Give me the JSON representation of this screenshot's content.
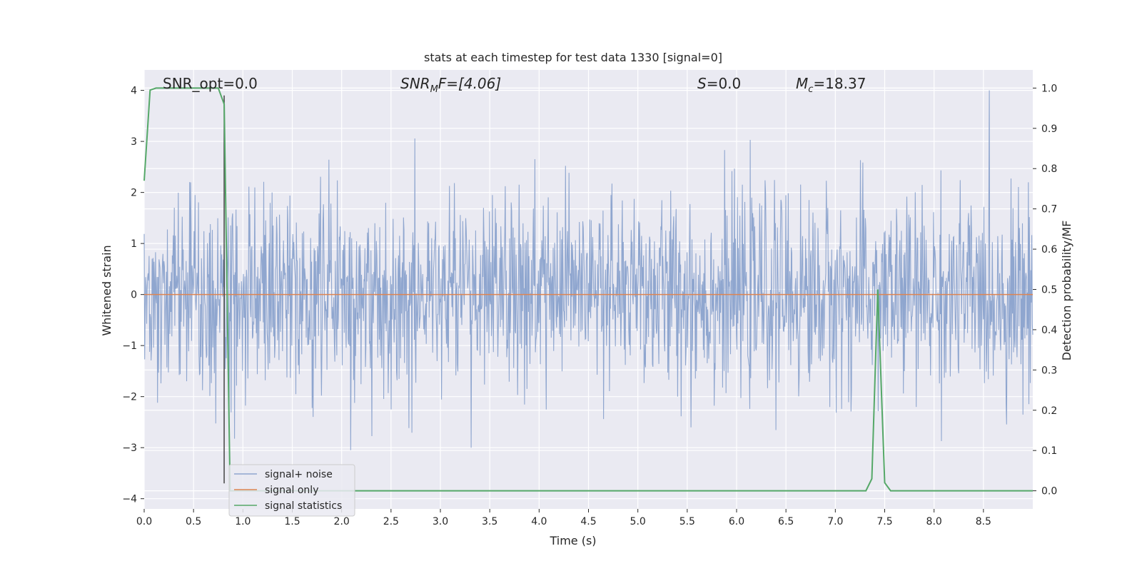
{
  "chart_data": {
    "type": "line",
    "title": "stats at each timestep for test data 1330 [signal=0]",
    "xlabel": "Time (s)",
    "ylabel": "Whitened strain",
    "ylabel_right": "Detection probability/MF",
    "xlim": [
      0.0,
      9.0
    ],
    "ylim": [
      -4.2,
      4.4
    ],
    "ylim_right": [
      -0.045,
      1.045
    ],
    "x_ticks": [
      "0.0",
      "0.5",
      "1.0",
      "1.5",
      "2.0",
      "2.5",
      "3.0",
      "3.5",
      "4.0",
      "4.5",
      "5.0",
      "5.5",
      "6.0",
      "6.5",
      "7.0",
      "7.5",
      "8.0",
      "8.5"
    ],
    "y_ticks": [
      "4",
      "3",
      "2",
      "1",
      "0",
      "−1",
      "−2",
      "−3",
      "−4"
    ],
    "y_ticks_right": [
      "1.0",
      "0.9",
      "0.8",
      "0.7",
      "0.6",
      "0.5",
      "0.4",
      "0.3",
      "0.2",
      "0.1",
      "0.0"
    ],
    "grid": true,
    "legend_position": "lower-left",
    "annotations": {
      "snr_opt": "SNR_opt=0.0",
      "snr_mf_prefix": "SNR",
      "snr_mf_sub": "M",
      "snr_mf_suffix": "F=[4.06]",
      "s_prefix": "S",
      "s_suffix": "=0.0",
      "mc_prefix": "M",
      "mc_sub": "c",
      "mc_suffix": "=18.37"
    },
    "marker_line_x": 0.81,
    "series": [
      {
        "name": "signal+ noise",
        "color": "#8fa6cf",
        "description_values": "noise, roughly uniform band between -1.5 and 1.5 with spikes up to 4.0 and down to -3.7"
      },
      {
        "name": "signal only",
        "color": "#dd8452",
        "values_constant": 0.0
      },
      {
        "name": "signal statistics",
        "color": "#55a868",
        "axis": "right",
        "x": [
          0.0,
          0.06,
          0.12,
          0.25,
          0.5,
          0.75,
          0.81,
          0.87,
          0.93,
          1.5,
          3.0,
          5.0,
          7.0,
          7.31,
          7.37,
          7.43,
          7.5,
          7.56,
          8.0,
          9.0
        ],
        "y": [
          0.77,
          0.995,
          1.0,
          1.0,
          1.0,
          1.0,
          0.96,
          0.0,
          0.0,
          0.0,
          0.0,
          0.0,
          0.0,
          0.0,
          0.03,
          0.5,
          0.02,
          0.0,
          0.0,
          0.0
        ]
      }
    ],
    "colors": {
      "background": "#eaeaf2",
      "grid": "#ffffff",
      "marker_line": "#444444"
    }
  }
}
